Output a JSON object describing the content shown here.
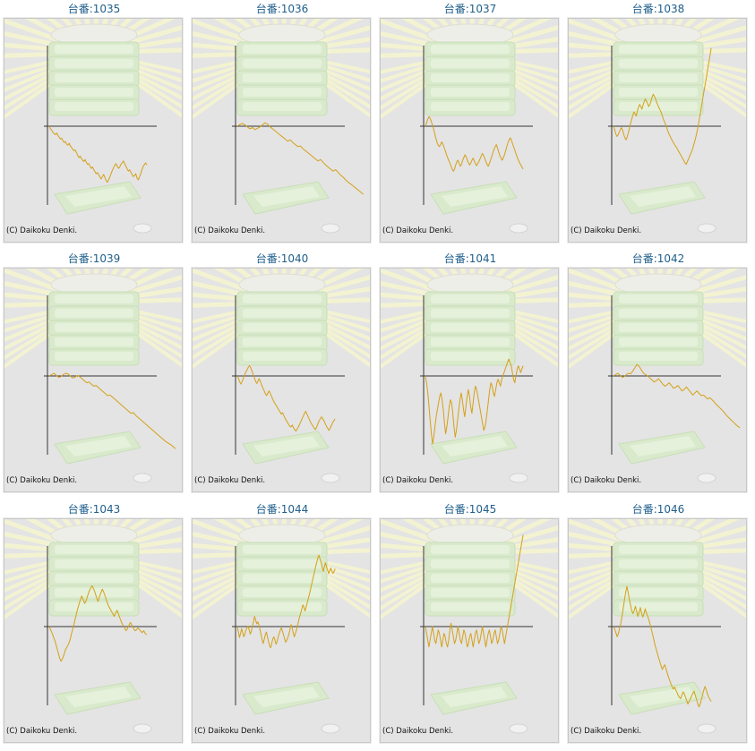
{
  "copyright": "(C) Daikoku Denki.",
  "colors": {
    "line": "#d4a017",
    "axis": "#333333",
    "title": "#1f5f8b",
    "background": "#e4e4e4"
  },
  "chart_data": [
    {
      "type": "line",
      "title": "台番:1035",
      "grid": false,
      "values": [
        0,
        -8,
        -12,
        -18,
        -22,
        -25,
        -20,
        -28,
        -32,
        -38,
        -35,
        -42,
        -48,
        -45,
        -52,
        -56,
        -50,
        -58,
        -62,
        -68,
        -72,
        -70,
        -78,
        -85,
        -92,
        -88,
        -95,
        -100,
        -104,
        -98,
        -106,
        -112,
        -110,
        -118,
        -124,
        -120,
        -128,
        -134,
        -140,
        -136,
        -142,
        -150,
        -155,
        -148,
        -142,
        -150,
        -160,
        -165,
        -158,
        -150,
        -140,
        -130,
        -122,
        -115,
        -110,
        -118,
        -124,
        -120,
        -112,
        -108,
        -102,
        -110,
        -118,
        -125,
        -132,
        -128,
        -135,
        -142,
        -148,
        -145,
        -140,
        -152,
        -158,
        -150,
        -140,
        -128,
        -118,
        -112,
        -108,
        -114
      ]
    },
    {
      "type": "line",
      "title": "台番:1036",
      "grid": false,
      "values": [
        0,
        5,
        8,
        4,
        -2,
        -8,
        -4,
        -10,
        -6,
        -2,
        4,
        10,
        6,
        -2,
        -8,
        -14,
        -20,
        -26,
        -32,
        -38,
        -44,
        -40,
        -48,
        -54,
        -60,
        -58,
        -66,
        -72,
        -78,
        -84,
        -90,
        -96,
        -102,
        -98,
        -106,
        -114,
        -120,
        -126,
        -132,
        -128,
        -136,
        -144,
        -150,
        -158,
        -165,
        -170,
        -176,
        -182,
        -188,
        -194,
        -200
      ]
    },
    {
      "type": "line",
      "title": "台番:1037",
      "grid": false,
      "values": [
        0,
        10,
        20,
        28,
        24,
        14,
        4,
        -8,
        -22,
        -36,
        -48,
        -56,
        -60,
        -54,
        -46,
        -52,
        -62,
        -72,
        -82,
        -92,
        -100,
        -108,
        -118,
        -126,
        -132,
        -126,
        -114,
        -104,
        -100,
        -110,
        -118,
        -112,
        -100,
        -92,
        -84,
        -90,
        -100,
        -108,
        -114,
        -108,
        -100,
        -94,
        -102,
        -110,
        -116,
        -110,
        -104,
        -96,
        -88,
        -80,
        -86,
        -94,
        -104,
        -112,
        -118,
        -110,
        -100,
        -90,
        -78,
        -68,
        -60,
        -54,
        -64,
        -76,
        -86,
        -94,
        -100,
        -92,
        -84,
        -72,
        -60,
        -48,
        -40,
        -34,
        -42,
        -52,
        -62,
        -72,
        -82,
        -92,
        -100,
        -108,
        -114,
        -120,
        -126
      ]
    },
    {
      "type": "line",
      "title": "台番:1038",
      "grid": false,
      "values": [
        0,
        -10,
        -22,
        -30,
        -26,
        -18,
        -10,
        -4,
        -12,
        -24,
        -34,
        -40,
        -32,
        -20,
        -6,
        8,
        20,
        32,
        42,
        36,
        30,
        44,
        56,
        64,
        58,
        50,
        62,
        72,
        80,
        74,
        66,
        58,
        64,
        74,
        86,
        94,
        88,
        80,
        70,
        62,
        54,
        48,
        40,
        30,
        20,
        12,
        4,
        -6,
        -16,
        -24,
        -30,
        -38,
        -44,
        -50,
        -56,
        -60,
        -66,
        -72,
        -78,
        -84,
        -90,
        -96,
        -102,
        -108,
        -112,
        -104,
        -96,
        -88,
        -80,
        -72,
        -62,
        -50,
        -38,
        -24,
        -8,
        10,
        30,
        50,
        70,
        90,
        110,
        130,
        150,
        170,
        190,
        210,
        230
      ]
    },
    {
      "type": "line",
      "title": "台番:1039",
      "grid": false,
      "values": [
        0,
        4,
        8,
        2,
        -4,
        -2,
        4,
        8,
        6,
        0,
        -6,
        -4,
        2,
        -2,
        -8,
        -14,
        -20,
        -18,
        -24,
        -30,
        -28,
        -34,
        -40,
        -46,
        -52,
        -58,
        -56,
        -62,
        -68,
        -74,
        -80,
        -86,
        -92,
        -98,
        -104,
        -110,
        -108,
        -116,
        -122,
        -128,
        -134,
        -140,
        -146,
        -152,
        -158,
        -164,
        -170,
        -176,
        -182,
        -188,
        -194,
        -198,
        -202,
        -208,
        -214
      ]
    },
    {
      "type": "line",
      "title": "台番:1040",
      "grid": false,
      "values": [
        0,
        -8,
        -18,
        -24,
        -16,
        -6,
        4,
        12,
        18,
        26,
        30,
        24,
        14,
        4,
        -6,
        -16,
        -22,
        -14,
        -8,
        -18,
        -28,
        -36,
        -44,
        -52,
        -58,
        -50,
        -44,
        -52,
        -60,
        -68,
        -76,
        -82,
        -88,
        -94,
        -100,
        -106,
        -112,
        -108,
        -116,
        -124,
        -130,
        -136,
        -142,
        -148,
        -150,
        -144,
        -152,
        -158,
        -162,
        -156,
        -150,
        -142,
        -134,
        -126,
        -118,
        -110,
        -104,
        -112,
        -120,
        -128,
        -136,
        -142,
        -148,
        -154,
        -158,
        -150,
        -140,
        -132,
        -126,
        -120,
        -126,
        -132,
        -140,
        -148,
        -154,
        -160,
        -154,
        -146,
        -138,
        -132,
        -126
      ]
    },
    {
      "type": "line",
      "title": "台番:1041",
      "grid": false,
      "values": [
        0,
        -20,
        -50,
        -90,
        -130,
        -170,
        -200,
        -180,
        -150,
        -120,
        -100,
        -80,
        -60,
        -50,
        -70,
        -100,
        -140,
        -170,
        -150,
        -120,
        -90,
        -70,
        -80,
        -110,
        -150,
        -180,
        -160,
        -130,
        -100,
        -70,
        -50,
        -70,
        -100,
        -120,
        -90,
        -60,
        -40,
        -60,
        -90,
        -110,
        -80,
        -50,
        -30,
        -40,
        -60,
        -80,
        -100,
        -120,
        -140,
        -160,
        -150,
        -130,
        -100,
        -70,
        -40,
        -20,
        -30,
        -50,
        -60,
        -40,
        -20,
        -10,
        -20,
        -30,
        -10,
        0,
        10,
        20,
        30,
        40,
        50,
        40,
        30,
        10,
        -10,
        -20,
        0,
        20,
        30,
        20,
        10,
        20,
        30
      ]
    },
    {
      "type": "line",
      "title": "台番:1042",
      "grid": false,
      "values": [
        0,
        4,
        8,
        2,
        -4,
        -2,
        4,
        8,
        6,
        14,
        24,
        34,
        28,
        18,
        8,
        4,
        0,
        -6,
        -12,
        -18,
        -14,
        -8,
        -16,
        -24,
        -30,
        -26,
        -20,
        -28,
        -36,
        -34,
        -28,
        -36,
        -44,
        -40,
        -32,
        -40,
        -48,
        -56,
        -50,
        -44,
        -52,
        -58,
        -56,
        -62,
        -68,
        -64,
        -70,
        -76,
        -84,
        -90,
        -96,
        -102,
        -110,
        -118,
        -124,
        -130,
        -136,
        -142,
        -148,
        -152
      ]
    },
    {
      "type": "line",
      "title": "台番:1043",
      "grid": false,
      "values": [
        0,
        -10,
        -20,
        -32,
        -44,
        -60,
        -76,
        -92,
        -102,
        -94,
        -82,
        -68,
        -60,
        -52,
        -40,
        -22,
        -6,
        12,
        30,
        48,
        64,
        78,
        90,
        80,
        68,
        76,
        90,
        104,
        112,
        120,
        112,
        100,
        86,
        74,
        88,
        100,
        110,
        100,
        88,
        74,
        62,
        54,
        46,
        38,
        30,
        40,
        48,
        36,
        24,
        12,
        4,
        -4,
        -12,
        -6,
        4,
        12,
        4,
        -4,
        -12,
        -10,
        -4,
        -8,
        -14,
        -18,
        -12,
        -20,
        -24
      ]
    },
    {
      "type": "line",
      "title": "台番:1044",
      "grid": false,
      "values": [
        0,
        -16,
        -32,
        -20,
        -6,
        -18,
        -30,
        -22,
        -10,
        -4,
        2,
        -10,
        -22,
        -14,
        0,
        14,
        30,
        20,
        8,
        14,
        6,
        -8,
        -22,
        -38,
        -50,
        -38,
        -24,
        -16,
        -30,
        -44,
        -56,
        -62,
        -50,
        -36,
        -30,
        -40,
        -52,
        -44,
        -30,
        -20,
        -10,
        -4,
        -14,
        -24,
        -36,
        -46,
        -40,
        -32,
        -22,
        -8,
        6,
        -4,
        -18,
        -30,
        -20,
        -10,
        4,
        16,
        30,
        40,
        52,
        64,
        56,
        46,
        58,
        70,
        82,
        94,
        108,
        122,
        136,
        150,
        164,
        178,
        190,
        202,
        210,
        198,
        188,
        174,
        162,
        176,
        188,
        176,
        166,
        156,
        164,
        172,
        162,
        156,
        162,
        170
      ]
    },
    {
      "type": "line",
      "title": "台番:1045",
      "grid": false,
      "values": [
        0,
        -20,
        -40,
        -60,
        -40,
        -20,
        0,
        -20,
        -40,
        -50,
        -30,
        -10,
        -20,
        -40,
        -60,
        -40,
        -20,
        -30,
        -50,
        -60,
        -40,
        -10,
        10,
        -10,
        -30,
        -50,
        -40,
        -20,
        0,
        -20,
        -40,
        -50,
        -30,
        -10,
        -20,
        -40,
        -60,
        -50,
        -30,
        -20,
        -40,
        -60,
        -40,
        -20,
        -10,
        -30,
        -50,
        -40,
        -20,
        0,
        -20,
        -40,
        -60,
        -40,
        -20,
        -10,
        -30,
        -50,
        -40,
        -20,
        -10,
        -30,
        -50,
        -40,
        -20,
        0,
        -10,
        -30,
        -50,
        -30,
        -10,
        10,
        30,
        50,
        70,
        90,
        110,
        130,
        150,
        170,
        190,
        210,
        230,
        250,
        270
      ]
    },
    {
      "type": "line",
      "title": "台番:1046",
      "grid": false,
      "values": [
        0,
        -8,
        -18,
        -30,
        -20,
        -6,
        10,
        30,
        54,
        80,
        100,
        118,
        100,
        80,
        62,
        46,
        38,
        48,
        60,
        44,
        30,
        42,
        56,
        40,
        28,
        38,
        52,
        40,
        30,
        20,
        6,
        -8,
        -22,
        -38,
        -54,
        -66,
        -80,
        -92,
        -104,
        -116,
        -126,
        -118,
        -112,
        -124,
        -136,
        -148,
        -158,
        -168,
        -176,
        -184,
        -178,
        -186,
        -194,
        -202,
        -208,
        -212,
        -202,
        -192,
        -198,
        -208,
        -218,
        -228,
        -220,
        -212,
        -204,
        -196,
        -190,
        -202,
        -214,
        -226,
        -236,
        -228,
        -214,
        -200,
        -186,
        -176,
        -186,
        -198,
        -208,
        -214,
        -220
      ]
    }
  ]
}
